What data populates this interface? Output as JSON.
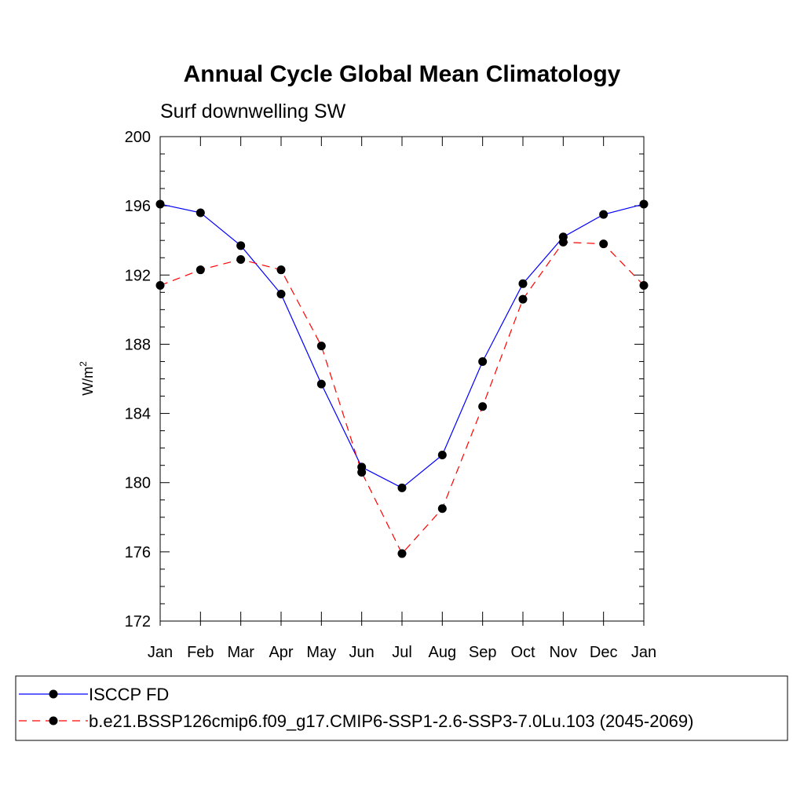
{
  "chart_data": {
    "type": "line",
    "title": "Annual Cycle Global Mean Climatology",
    "subtitle": "Surf downwelling SW",
    "ylabel": "W/m",
    "ylabel_sup": "2",
    "xlabel": "",
    "ylim": [
      172,
      200
    ],
    "yticks": [
      "172",
      "176",
      "180",
      "184",
      "188",
      "192",
      "196",
      "200"
    ],
    "categories": [
      "Jan",
      "Feb",
      "Mar",
      "Apr",
      "May",
      "Jun",
      "Jul",
      "Aug",
      "Sep",
      "Oct",
      "Nov",
      "Dec",
      "Jan"
    ],
    "grid": false,
    "legend_position": "bottom",
    "series": [
      {
        "name": "ISCCP FD",
        "color": "#0000ff",
        "dash": "solid",
        "values": [
          196.1,
          195.6,
          193.7,
          190.9,
          185.7,
          180.9,
          179.7,
          181.6,
          187.0,
          191.5,
          194.2,
          195.5,
          196.1
        ]
      },
      {
        "name": "b.e21.BSSP126cmip6.f09_g17.CMIP6-SSP1-2.6-SSP3-7.0Lu.103 (2045-2069)",
        "color": "#ff0000",
        "dash": "dashed",
        "values": [
          191.4,
          192.3,
          192.9,
          192.3,
          187.9,
          180.6,
          175.9,
          178.5,
          184.4,
          190.6,
          193.9,
          193.8,
          191.4
        ]
      }
    ]
  }
}
